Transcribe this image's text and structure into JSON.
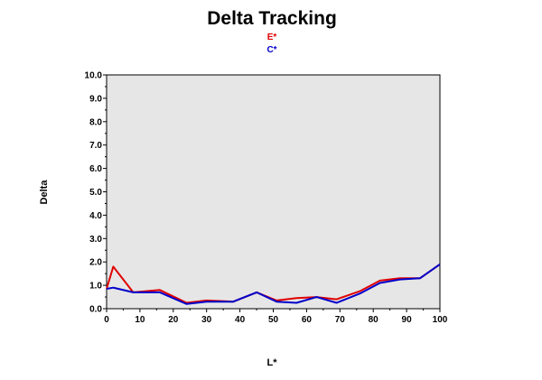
{
  "chart_data": {
    "type": "line",
    "title": "Delta Tracking",
    "xlabel": "L*",
    "ylabel": "Delta",
    "xlim": [
      0,
      100
    ],
    "ylim": [
      0,
      10
    ],
    "xticks": [
      "0",
      "10",
      "20",
      "30",
      "40",
      "50",
      "60",
      "70",
      "80",
      "90",
      "100"
    ],
    "yticks": [
      "0.0",
      "1.0",
      "2.0",
      "3.0",
      "4.0",
      "5.0",
      "6.0",
      "7.0",
      "8.0",
      "9.0",
      "10.0"
    ],
    "grid": false,
    "legend_position": "top-center",
    "plot_background": "#e6e6e6",
    "series": [
      {
        "name": "E*",
        "color": "#e00000",
        "x": [
          0,
          2,
          8,
          16,
          24,
          30,
          38,
          45,
          51,
          57,
          63,
          69,
          76,
          82,
          88,
          94,
          100
        ],
        "y": [
          0.85,
          1.8,
          0.7,
          0.8,
          0.25,
          0.35,
          0.3,
          0.7,
          0.35,
          0.45,
          0.5,
          0.4,
          0.75,
          1.2,
          1.3,
          1.3,
          1.9
        ]
      },
      {
        "name": "C*",
        "color": "#0000cc",
        "x": [
          0,
          2,
          8,
          16,
          24,
          30,
          38,
          45,
          51,
          57,
          63,
          69,
          76,
          82,
          88,
          94,
          100
        ],
        "y": [
          0.85,
          0.9,
          0.7,
          0.7,
          0.2,
          0.3,
          0.3,
          0.7,
          0.3,
          0.25,
          0.5,
          0.25,
          0.65,
          1.1,
          1.25,
          1.3,
          1.9
        ]
      }
    ]
  }
}
